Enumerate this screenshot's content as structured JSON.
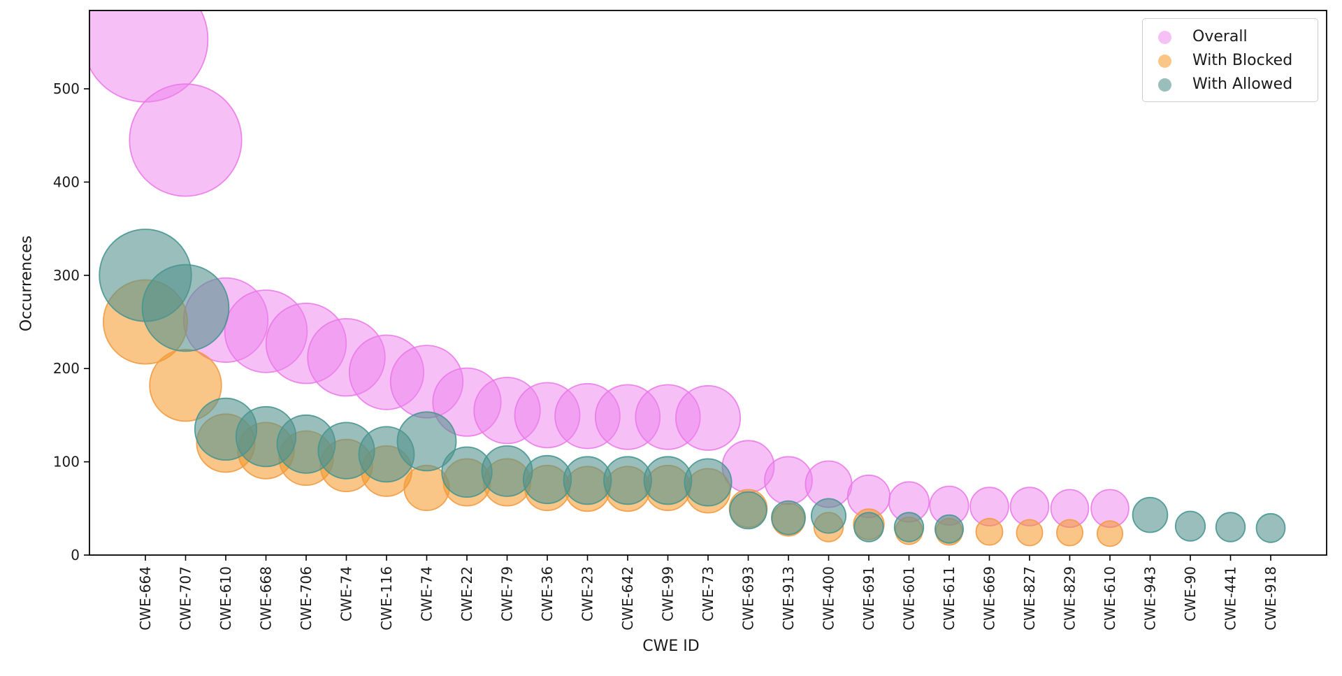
{
  "chart_data": {
    "type": "bubble-scatter",
    "title": "",
    "xlabel": "CWE ID",
    "ylabel": "Occurrences",
    "categories": [
      "CWE-664",
      "CWE-707",
      "CWE-610",
      "CWE-668",
      "CWE-706",
      "CWE-74",
      "CWE-116",
      "CWE-74",
      "CWE-22",
      "CWE-79",
      "CWE-36",
      "CWE-23",
      "CWE-642",
      "CWE-99",
      "CWE-73",
      "CWE-693",
      "CWE-913",
      "CWE-400",
      "CWE-691",
      "CWE-601",
      "CWE-611",
      "CWE-669",
      "CWE-827",
      "CWE-829",
      "CWE-610",
      "CWE-943",
      "CWE-90",
      "CWE-441",
      "CWE-918"
    ],
    "series": [
      {
        "name": "Overall",
        "fill": "rgba(238,130,238,0.5)",
        "edge": "rgba(234,118,232,0.85)",
        "values": [
          553,
          445,
          252,
          240,
          227,
          212,
          196,
          186,
          164,
          155,
          150,
          149,
          148,
          148,
          147,
          95,
          80,
          76,
          63,
          57,
          53,
          52,
          52,
          50,
          50,
          null,
          null,
          null,
          null
        ]
      },
      {
        "name": "With Blocked",
        "fill": "rgba(244,152,38,0.55)",
        "edge": "rgba(242,155,66,0.9)",
        "values": [
          250,
          182,
          120,
          112,
          104,
          96,
          90,
          72,
          78,
          78,
          72,
          71,
          71,
          72,
          69,
          50,
          38,
          30,
          33,
          26,
          25,
          25,
          24,
          24,
          23,
          null,
          null,
          null,
          null
        ]
      },
      {
        "name": "With Allowed",
        "fill": "rgba(85,146,141,0.6)",
        "edge": "rgba(70,150,145,0.9)",
        "values": [
          300,
          265,
          135,
          127,
          119,
          112,
          108,
          122,
          89,
          90,
          81,
          80,
          80,
          80,
          78,
          48,
          40,
          42,
          30,
          30,
          28,
          null,
          null,
          null,
          null,
          43,
          31,
          30,
          29
        ]
      }
    ],
    "yticks": [
      0,
      100,
      200,
      300,
      400,
      500
    ],
    "ylim": [
      0,
      584
    ],
    "legend_position": "upper right",
    "size_encoding": "bubble radius proportional to sqrt(occurrences)"
  }
}
